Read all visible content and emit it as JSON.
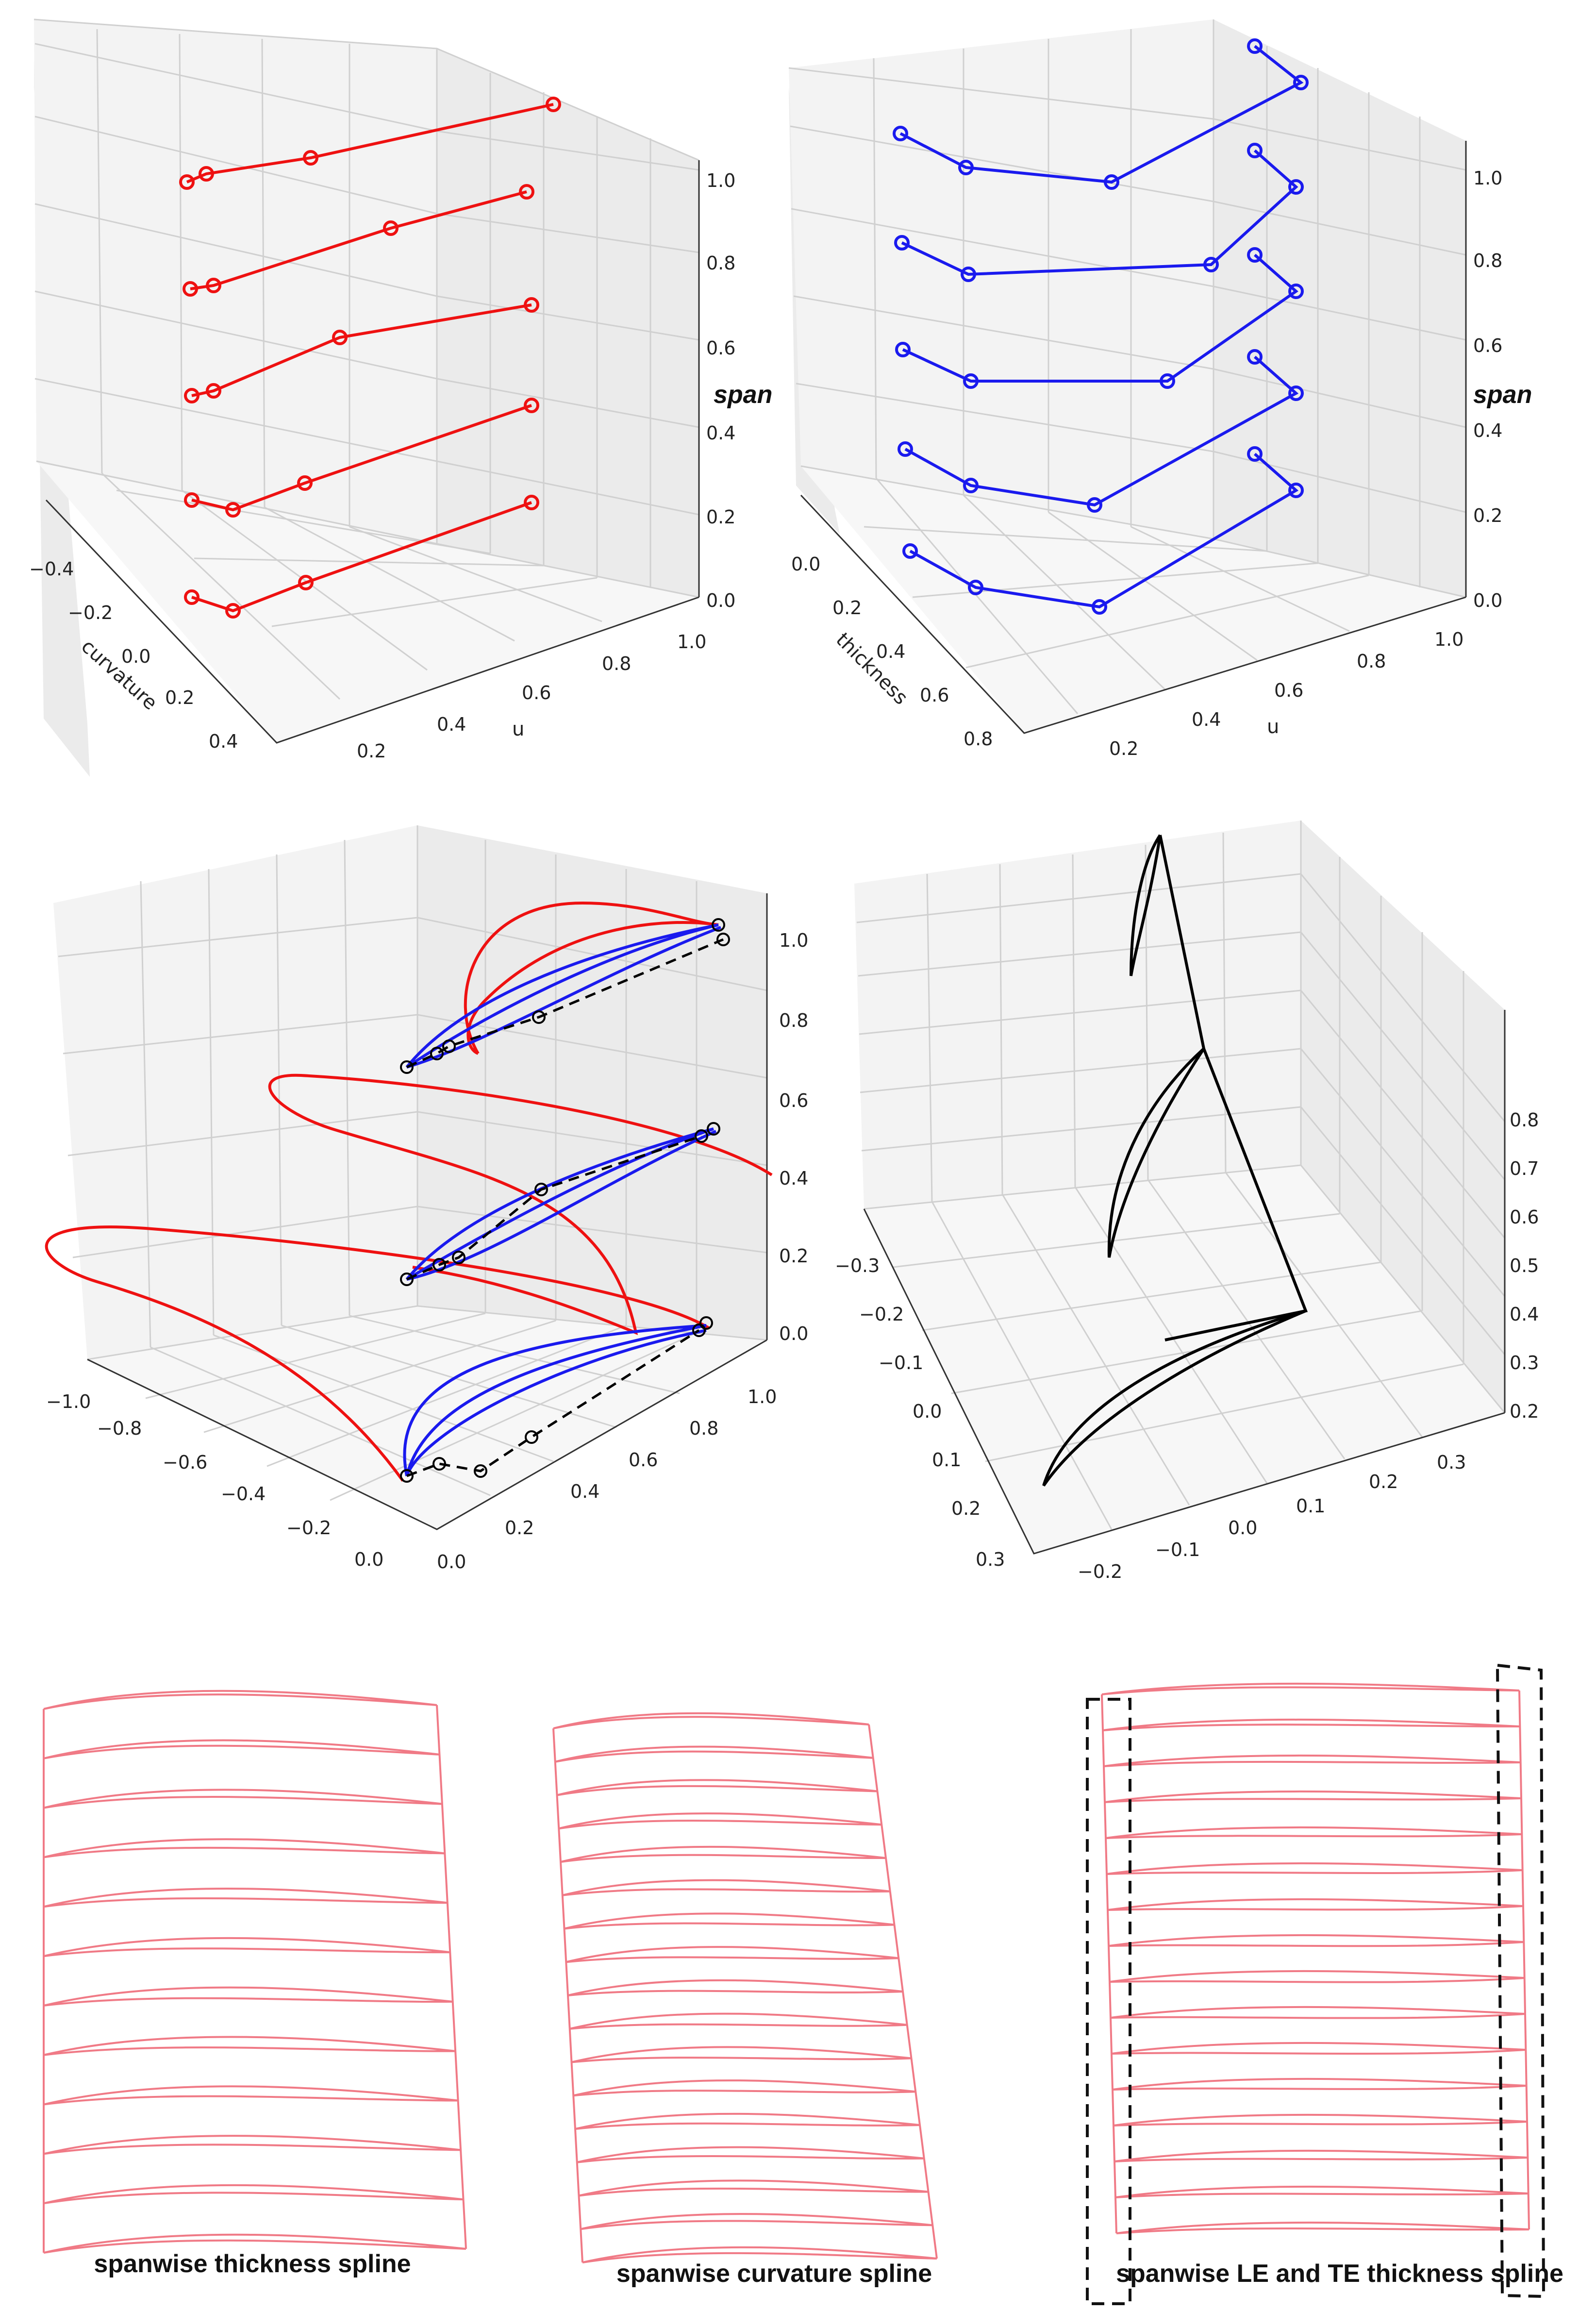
{
  "chart_data": [
    {
      "type": "line3d",
      "panel": "top-left",
      "series_color": "#ee1111",
      "zlabel": "span",
      "xlabel": "curvature",
      "ylabel": "u",
      "x_ticks": [
        "−0.4",
        "−0.2",
        "0.0",
        "0.2",
        "0.4"
      ],
      "y_ticks": [
        "0.2",
        "0.4",
        "0.6",
        "0.8",
        "1.0"
      ],
      "z_ticks": [
        "0.0",
        "0.2",
        "0.4",
        "0.6",
        "0.8",
        "1.0"
      ],
      "series": [
        {
          "name": "span 0.0",
          "span": 0.0,
          "u": [
            0.0,
            0.05,
            0.3,
            1.0
          ],
          "curvature": [
            -0.3,
            -0.2,
            -0.15,
            0.3
          ]
        },
        {
          "name": "span 0.25",
          "span": 0.25,
          "u": [
            0.0,
            0.05,
            0.3,
            1.0
          ],
          "curvature": [
            -0.3,
            -0.2,
            -0.15,
            0.3
          ]
        },
        {
          "name": "span 0.5",
          "span": 0.5,
          "u": [
            0.0,
            0.05,
            0.4,
            1.0
          ],
          "curvature": [
            -0.35,
            -0.3,
            -0.1,
            0.3
          ]
        },
        {
          "name": "span 0.75",
          "span": 0.75,
          "u": [
            0.0,
            0.05,
            0.5,
            1.0
          ],
          "curvature": [
            -0.35,
            -0.3,
            0.0,
            0.3
          ]
        },
        {
          "name": "span 1.0",
          "span": 1.0,
          "u": [
            0.0,
            0.05,
            0.3,
            1.0
          ],
          "curvature": [
            -0.35,
            -0.3,
            -0.2,
            0.3
          ]
        }
      ]
    },
    {
      "type": "line3d",
      "panel": "top-right",
      "series_color": "#1a1aee",
      "zlabel": "span",
      "xlabel": "thickness",
      "ylabel": "u",
      "x_ticks": [
        "0.0",
        "0.2",
        "0.4",
        "0.6",
        "0.8"
      ],
      "y_ticks": [
        "0.2",
        "0.4",
        "0.6",
        "0.8",
        "1.0"
      ],
      "z_ticks": [
        "0.0",
        "0.2",
        "0.4",
        "0.6",
        "0.8",
        "1.0"
      ],
      "series": [
        {
          "name": "span 0.0",
          "span": 0.0
        },
        {
          "name": "span 0.25",
          "span": 0.25
        },
        {
          "name": "span 0.5",
          "span": 0.5
        },
        {
          "name": "span 0.75",
          "span": 0.75
        },
        {
          "name": "span 1.0",
          "span": 1.0
        }
      ]
    },
    {
      "type": "line3d",
      "panel": "middle-left",
      "series_colors": [
        "#ee1111",
        "#1a1aee",
        "#000000"
      ],
      "x_ticks": [
        "−1.0",
        "−0.8",
        "−0.6",
        "−0.4",
        "−0.2",
        "0.0"
      ],
      "y_ticks": [
        "0.0",
        "0.2",
        "0.4",
        "0.6",
        "0.8",
        "1.0"
      ],
      "z_ticks": [
        "0.0",
        "0.2",
        "0.4",
        "0.6",
        "0.8",
        "1.0"
      ]
    },
    {
      "type": "line3d",
      "panel": "middle-right",
      "series_color": "#000000",
      "x_ticks": [
        "−0.3",
        "−0.2",
        "−0.1",
        "0.0",
        "0.1",
        "0.2",
        "0.3"
      ],
      "y_ticks": [
        "−0.2",
        "−0.1",
        "0.0",
        "0.1",
        "0.2",
        "0.3"
      ],
      "z_ticks": [
        "0.2",
        "0.3",
        "0.4",
        "0.5",
        "0.6",
        "0.7",
        "0.8"
      ]
    },
    {
      "type": "blade-outline",
      "panel": "bottom-left",
      "caption": "spanwise thickness spline",
      "section_count": 12
    },
    {
      "type": "blade-outline",
      "panel": "bottom-middle",
      "caption": "spanwise curvature spline",
      "section_count": 17
    },
    {
      "type": "blade-outline",
      "panel": "bottom-right",
      "caption": "spanwise LE and TE thickness spline",
      "section_count": 16
    }
  ],
  "colors": {
    "red": "#ee1111",
    "blue": "#1a1aee",
    "pink": "#f07a86",
    "grid": "#d0d0d0"
  }
}
